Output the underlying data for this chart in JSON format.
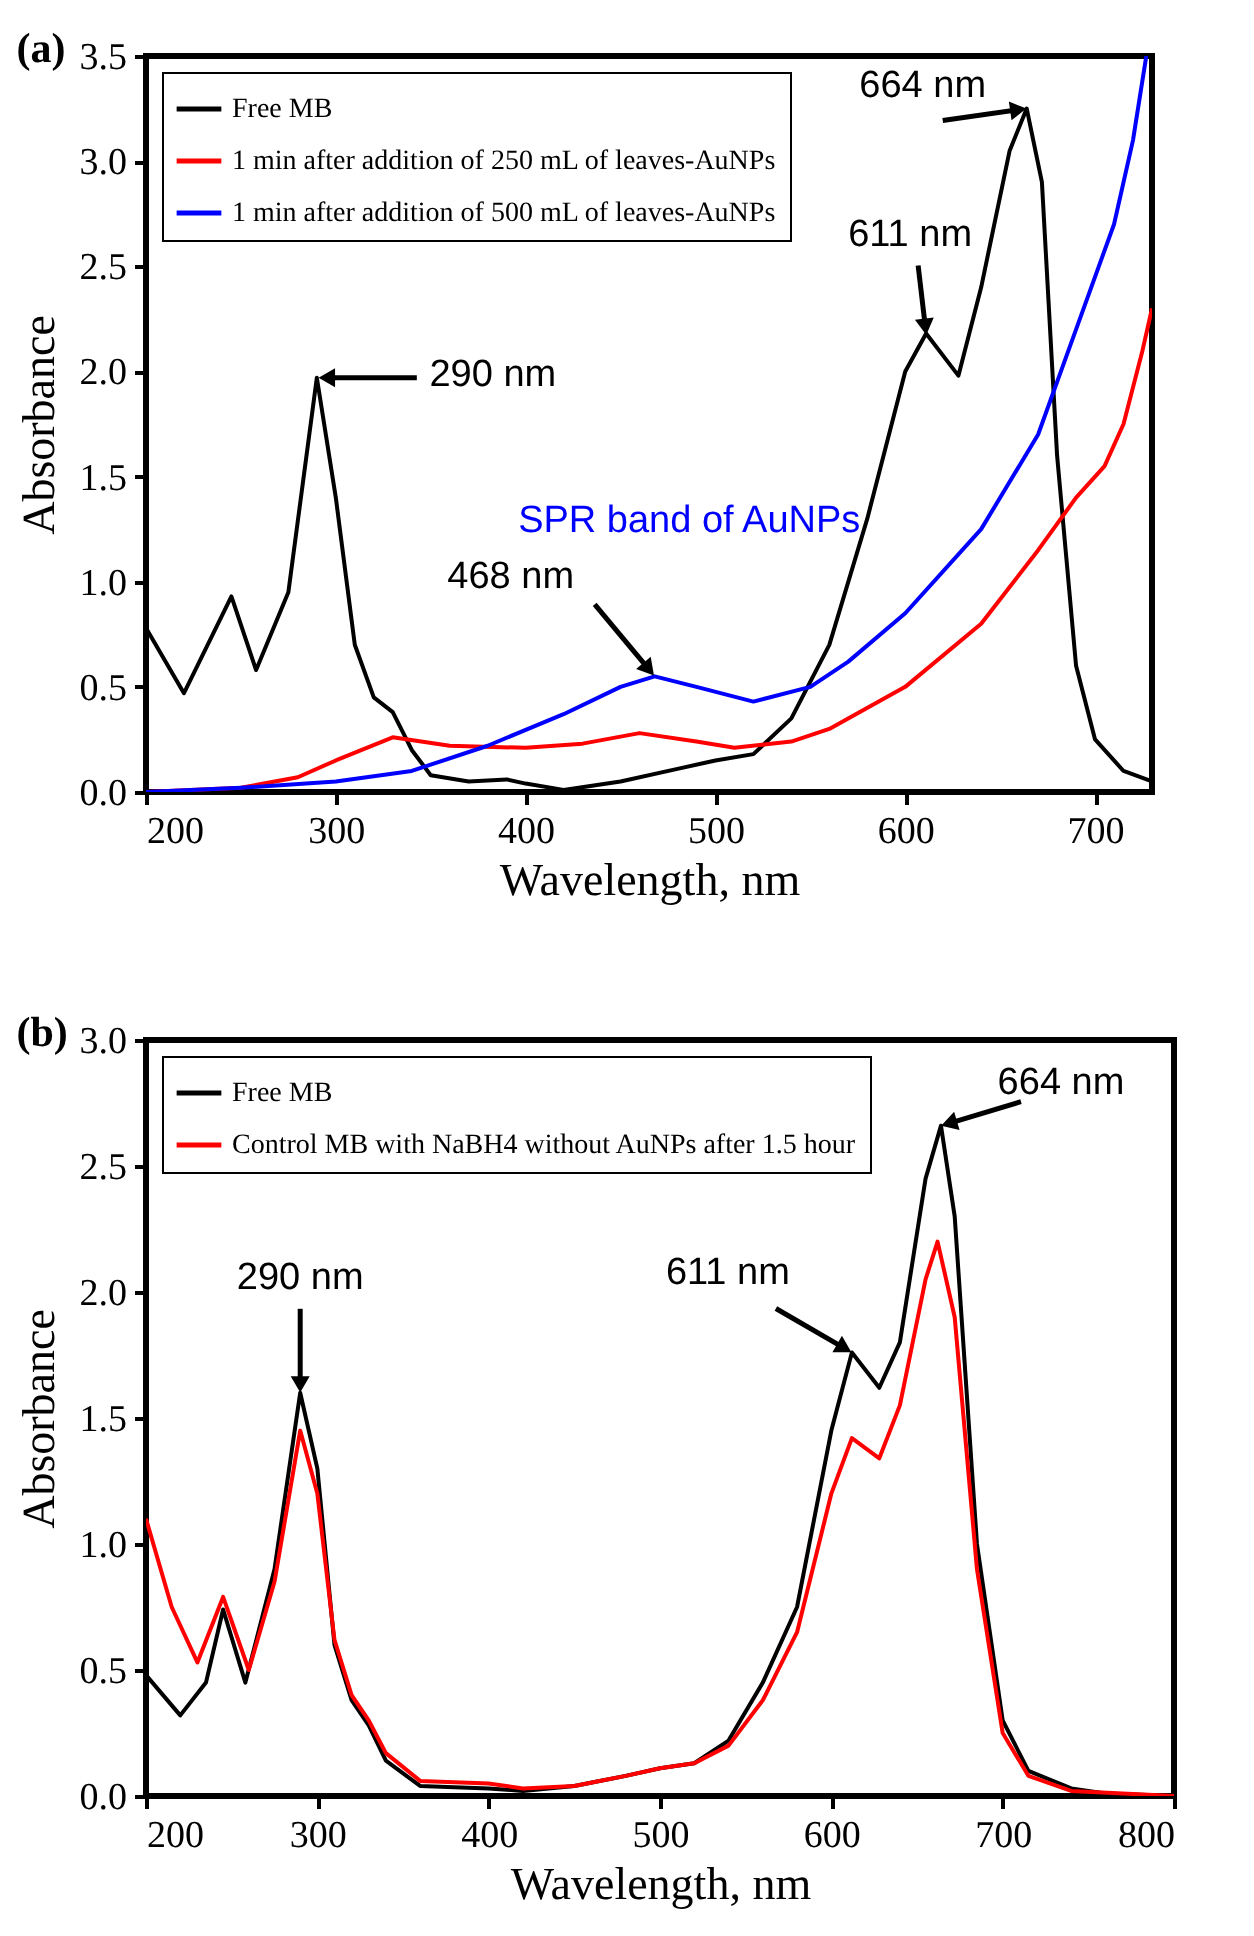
{
  "chart_data": [
    {
      "type": "line",
      "title": "(a)",
      "xlabel": "Wavelength, nm",
      "ylabel": "Absorbance",
      "xlim": [
        200,
        730
      ],
      "ylim": [
        0,
        3.5
      ],
      "xticks": [
        200,
        300,
        400,
        500,
        600,
        700
      ],
      "yticks": [
        {
          "value": 0,
          "label": "0.0"
        },
        0.5,
        {
          "value": 1,
          "label": "1.0"
        },
        1.5,
        {
          "value": 2,
          "label": "2.0"
        },
        2.5,
        {
          "value": 3,
          "label": "3.0"
        },
        3.5
      ],
      "grid": false,
      "legend": "top left",
      "annotations": [
        {
          "text": "290 nm",
          "x": 290,
          "y": 1.97
        },
        {
          "text": "611 nm",
          "x": 611,
          "y": 2.18
        },
        {
          "text": "664 nm",
          "x": 664,
          "y": 3.25
        },
        {
          "text": "468 nm",
          "x": 468,
          "y": 0.55
        },
        "SPR band of AuNPs"
      ],
      "series": [
        {
          "name": "Free MB",
          "color": "#000000",
          "x": [
            200,
            220,
            245,
            258,
            275,
            290,
            300,
            310,
            320,
            330,
            340,
            350,
            370,
            390,
            400,
            420,
            450,
            480,
            500,
            520,
            540,
            560,
            580,
            600,
            611,
            628,
            640,
            655,
            664,
            672,
            680,
            690,
            700,
            715,
            730
          ],
          "values": [
            0.78,
            0.47,
            0.93,
            0.58,
            0.95,
            1.97,
            1.4,
            0.7,
            0.45,
            0.38,
            0.2,
            0.08,
            0.05,
            0.06,
            0.04,
            0.01,
            0.05,
            0.11,
            0.15,
            0.18,
            0.35,
            0.7,
            1.3,
            2.0,
            2.18,
            1.98,
            2.4,
            3.05,
            3.25,
            2.9,
            1.6,
            0.6,
            0.25,
            0.1,
            0.05
          ]
        },
        {
          "name": "1 min after addition of 250 mL of leaves-AuNPs",
          "color": "#ff0000",
          "x": [
            200,
            250,
            280,
            300,
            330,
            360,
            400,
            430,
            460,
            490,
            510,
            540,
            560,
            600,
            640,
            670,
            690,
            705,
            715,
            725,
            730
          ],
          "values": [
            0,
            0.02,
            0.07,
            0.15,
            0.26,
            0.22,
            0.21,
            0.23,
            0.28,
            0.24,
            0.21,
            0.24,
            0.3,
            0.5,
            0.8,
            1.15,
            1.4,
            1.55,
            1.75,
            2.1,
            2.3
          ]
        },
        {
          "name": "1 min after addition of 500 mL of leaves-AuNPs",
          "color": "#0000ff",
          "x": [
            200,
            250,
            300,
            340,
            380,
            420,
            450,
            468,
            490,
            520,
            550,
            570,
            600,
            640,
            670,
            690,
            710,
            720,
            727
          ],
          "values": [
            0,
            0.02,
            0.05,
            0.1,
            0.22,
            0.37,
            0.5,
            0.55,
            0.5,
            0.43,
            0.5,
            0.62,
            0.85,
            1.25,
            1.7,
            2.2,
            2.7,
            3.1,
            3.5
          ]
        }
      ]
    },
    {
      "type": "line",
      "title": "(b)",
      "xlabel": "Wavelength, nm",
      "ylabel": "Absorbance",
      "xlim": [
        200,
        800
      ],
      "ylim": [
        0,
        3
      ],
      "xticks": [
        200,
        300,
        400,
        500,
        600,
        700,
        800
      ],
      "yticks": [
        {
          "value": 0,
          "label": "0.0"
        },
        0.5,
        {
          "value": 1,
          "label": "1.0"
        },
        1.5,
        {
          "value": 2,
          "label": "2.0"
        },
        2.5,
        {
          "value": 3,
          "label": "3.0"
        }
      ],
      "grid": false,
      "legend": "top left",
      "annotations": [
        {
          "text": "290 nm",
          "x": 290,
          "y": 1.6
        },
        {
          "text": "611 nm",
          "x": 612,
          "y": 1.76
        },
        {
          "text": "664 nm",
          "x": 664,
          "y": 2.66
        }
      ],
      "series": [
        {
          "name": "Free MB",
          "color": "#000000",
          "x": [
            200,
            220,
            235,
            245,
            258,
            275,
            290,
            300,
            310,
            320,
            330,
            340,
            360,
            400,
            420,
            450,
            480,
            500,
            520,
            540,
            560,
            580,
            600,
            612,
            628,
            640,
            655,
            664,
            672,
            685,
            700,
            715,
            740,
            760,
            800
          ],
          "values": [
            0.48,
            0.32,
            0.45,
            0.74,
            0.45,
            0.9,
            1.6,
            1.3,
            0.6,
            0.38,
            0.28,
            0.14,
            0.04,
            0.03,
            0.02,
            0.04,
            0.08,
            0.11,
            0.13,
            0.22,
            0.45,
            0.75,
            1.45,
            1.76,
            1.62,
            1.8,
            2.45,
            2.66,
            2.3,
            1.0,
            0.3,
            0.1,
            0.03,
            0.01,
            0
          ]
        },
        {
          "name": "Control MB with NaBH4 without AuNPs after 1.5 hour",
          "color": "#ff0000",
          "x": [
            200,
            215,
            230,
            245,
            260,
            275,
            290,
            300,
            310,
            320,
            330,
            340,
            360,
            400,
            420,
            450,
            480,
            500,
            520,
            540,
            560,
            580,
            600,
            612,
            628,
            640,
            655,
            662,
            672,
            685,
            700,
            715,
            740,
            800
          ],
          "values": [
            1.1,
            0.75,
            0.53,
            0.79,
            0.5,
            0.85,
            1.45,
            1.2,
            0.62,
            0.4,
            0.3,
            0.17,
            0.06,
            0.05,
            0.03,
            0.04,
            0.08,
            0.11,
            0.13,
            0.2,
            0.38,
            0.65,
            1.2,
            1.42,
            1.34,
            1.55,
            2.05,
            2.2,
            1.9,
            0.9,
            0.25,
            0.08,
            0.02,
            0
          ]
        }
      ]
    }
  ]
}
